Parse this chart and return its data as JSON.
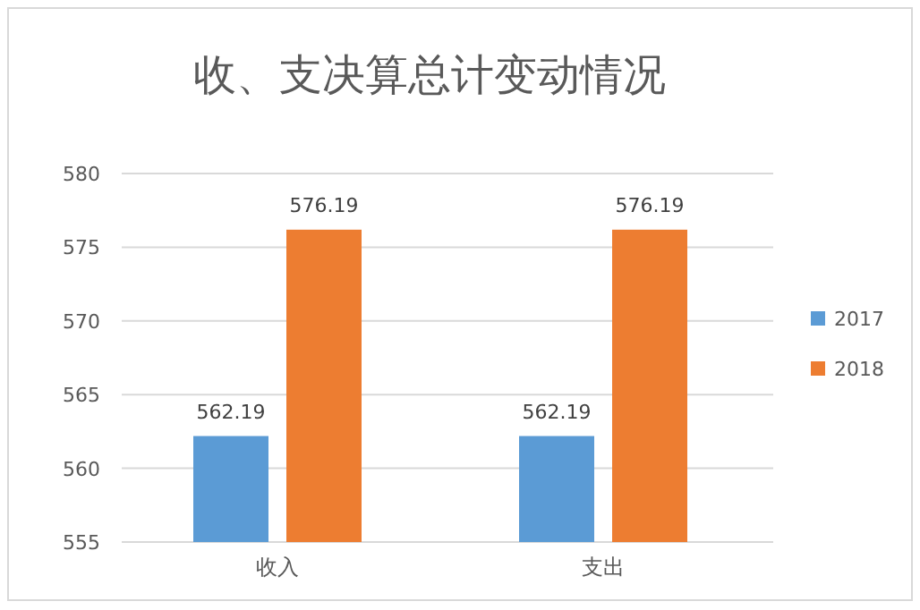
{
  "chart_data": {
    "type": "bar",
    "title": "收、支决算总计变动情况",
    "categories": [
      "收入",
      "支出"
    ],
    "series": [
      {
        "name": "2017",
        "color": "#5b9bd5",
        "values": [
          562.19,
          562.19
        ]
      },
      {
        "name": "2018",
        "color": "#ed7d31",
        "values": [
          576.19,
          576.19
        ]
      }
    ],
    "ylim": [
      555,
      580
    ],
    "yticks": [
      555,
      560,
      565,
      570,
      575,
      580
    ],
    "grid": "y",
    "legend": "right",
    "data_labels": true
  }
}
